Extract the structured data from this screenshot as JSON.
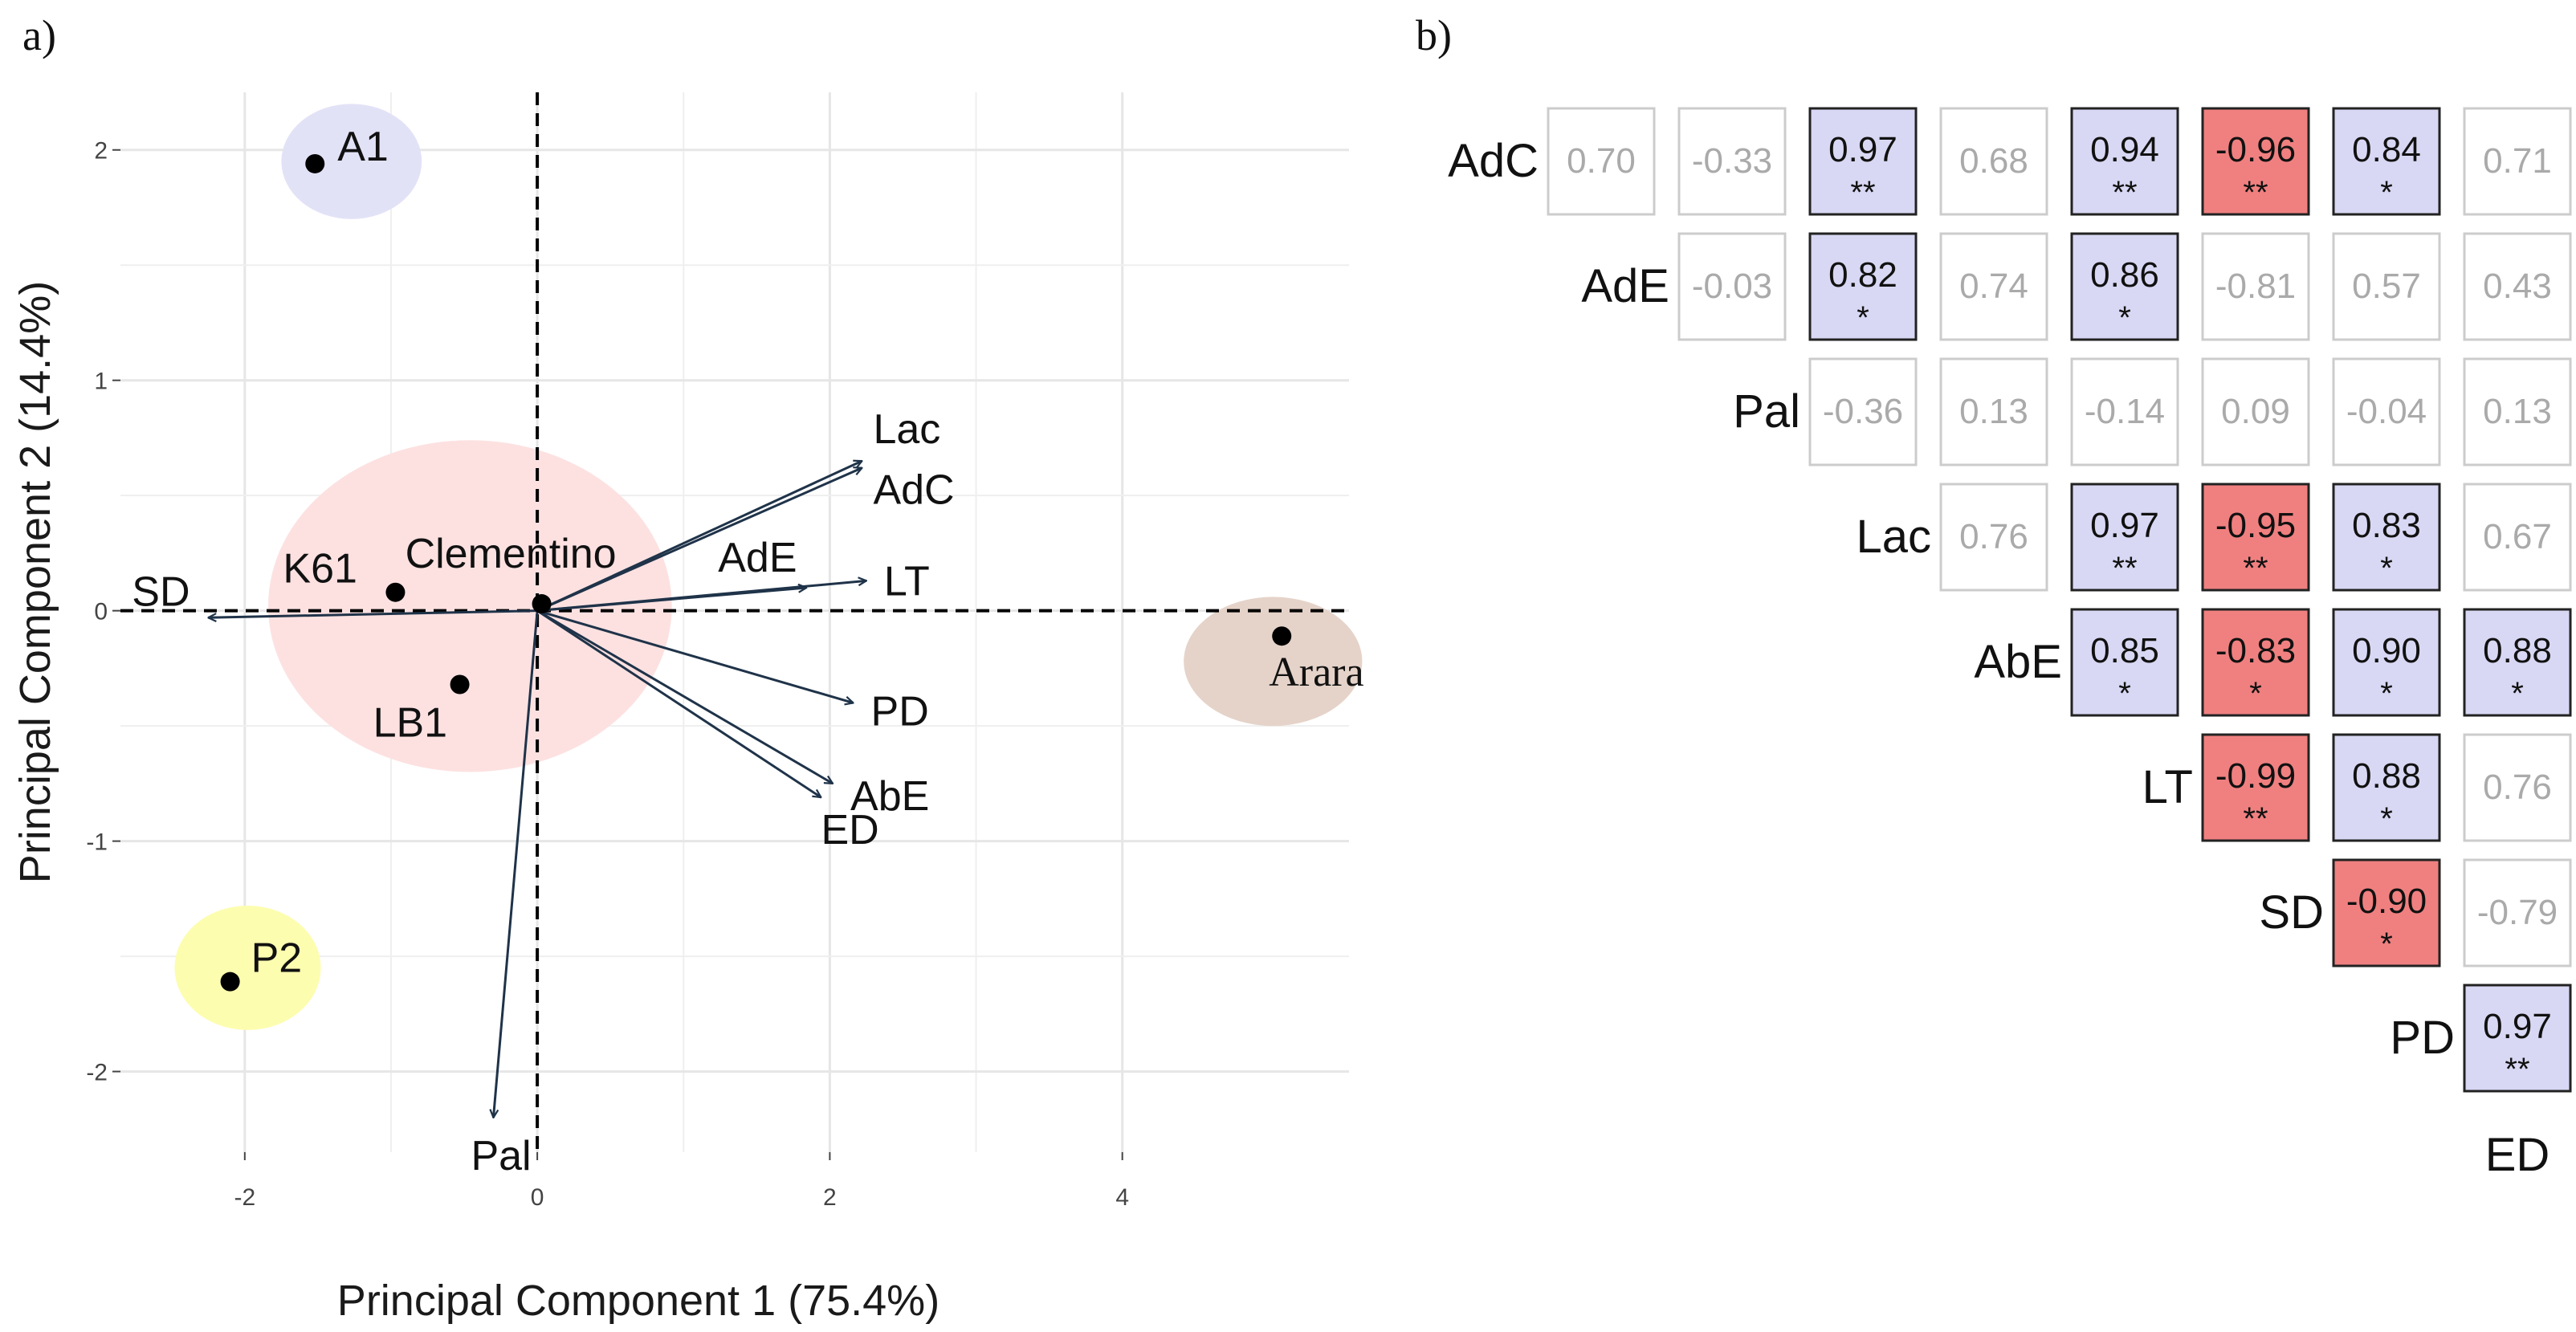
{
  "panel_labels": {
    "a": "a)",
    "b": "b)"
  },
  "chart_data": [
    {
      "type": "scatter",
      "subtype": "pca-biplot",
      "title": "",
      "xlabel": "Principal Component 1 (75.4%)",
      "ylabel": "Principal Component 2 (14.4%)",
      "xlim": [
        -2.85,
        5.55
      ],
      "ylim": [
        -2.35,
        2.25
      ],
      "grid": true,
      "x_ticks": [
        -2,
        0,
        2,
        4
      ],
      "x_tick_labels": [
        "-2",
        "0",
        "2",
        "4"
      ],
      "y_ticks": [
        -2,
        -1,
        0,
        1,
        2
      ],
      "y_tick_labels": [
        "-2",
        "-1",
        "0",
        "1",
        "2"
      ],
      "colors": {
        "vector": "#1f3349",
        "point": "#000000",
        "grid": "#e6e6e6",
        "zero_line": "#000000",
        "tick": "#444444"
      },
      "points": [
        {
          "name": "A1",
          "x": -1.52,
          "y": 1.94
        },
        {
          "name": "K61",
          "x": -0.97,
          "y": 0.08
        },
        {
          "name": "Clementino",
          "x": 0.03,
          "y": 0.03
        },
        {
          "name": "LB1",
          "x": -0.53,
          "y": -0.32
        },
        {
          "name": "P2",
          "x": -2.1,
          "y": -1.61
        },
        {
          "name": "Arara",
          "x": 5.09,
          "y": -0.11
        }
      ],
      "ellipses": [
        {
          "group": "A1",
          "cx": -1.27,
          "cy": 1.95,
          "rx": 0.48,
          "ry": 0.25,
          "color": "#e2e2f7"
        },
        {
          "group": "Clementino",
          "cx": -0.46,
          "cy": 0.02,
          "rx": 1.38,
          "ry": 0.72,
          "color": "#fde1e1"
        },
        {
          "group": "P2",
          "cx": -1.98,
          "cy": -1.55,
          "rx": 0.5,
          "ry": 0.27,
          "color": "#fdfdb0"
        },
        {
          "group": "Arara",
          "cx": 5.03,
          "cy": -0.22,
          "rx": 0.61,
          "ry": 0.28,
          "color": "#e5d3c9"
        }
      ],
      "vectors": [
        {
          "name": "Lac",
          "x": 2.22,
          "y": 0.65
        },
        {
          "name": "AdC",
          "x": 2.22,
          "y": 0.62
        },
        {
          "name": "AdE",
          "x": 1.84,
          "y": 0.1
        },
        {
          "name": "LT",
          "x": 2.25,
          "y": 0.13
        },
        {
          "name": "PD",
          "x": 2.16,
          "y": -0.4
        },
        {
          "name": "AbE",
          "x": 2.02,
          "y": -0.75
        },
        {
          "name": "ED",
          "x": 1.94,
          "y": -0.81
        },
        {
          "name": "Pal",
          "x": -0.3,
          "y": -2.2
        },
        {
          "name": "SD",
          "x": -2.25,
          "y": -0.03
        }
      ]
    },
    {
      "type": "heatmap",
      "subtype": "correlation-matrix-upper-triangle",
      "title": "",
      "row_labels": [
        "AdC",
        "AdE",
        "Pal",
        "Lac",
        "AbE",
        "LT",
        "SD",
        "PD"
      ],
      "col_labels": [
        "AdE",
        "Pal",
        "Lac",
        "AbE",
        "LT",
        "SD",
        "PD",
        "ED"
      ],
      "bottom_label": "ED",
      "values": [
        [
          "0.70",
          "-0.33",
          "0.97",
          "0.68",
          "0.94",
          "-0.96",
          "0.84",
          "0.71"
        ],
        [
          null,
          "-0.03",
          "0.82",
          "0.74",
          "0.86",
          "-0.81",
          "0.57",
          "0.43"
        ],
        [
          null,
          null,
          "-0.36",
          "0.13",
          "-0.14",
          "0.09",
          "-0.04",
          "0.13"
        ],
        [
          null,
          null,
          null,
          "0.76",
          "0.97",
          "-0.95",
          "0.83",
          "0.67"
        ],
        [
          null,
          null,
          null,
          null,
          "0.85",
          "-0.83",
          "0.90",
          "0.88"
        ],
        [
          null,
          null,
          null,
          null,
          null,
          "-0.99",
          "0.88",
          "0.76"
        ],
        [
          null,
          null,
          null,
          null,
          null,
          null,
          "-0.90",
          "-0.79"
        ],
        [
          null,
          null,
          null,
          null,
          null,
          null,
          null,
          "0.97"
        ]
      ],
      "significance": [
        [
          "",
          "",
          "**",
          "",
          "**",
          "**",
          "*",
          ""
        ],
        [
          null,
          "",
          "*",
          "",
          "*",
          "",
          "",
          ""
        ],
        [
          null,
          null,
          "",
          "",
          "",
          "",
          "",
          ""
        ],
        [
          null,
          null,
          null,
          "",
          "**",
          "**",
          "*",
          ""
        ],
        [
          null,
          null,
          null,
          null,
          "*",
          "*",
          "*",
          "*"
        ],
        [
          null,
          null,
          null,
          null,
          null,
          "**",
          "*",
          ""
        ],
        [
          null,
          null,
          null,
          null,
          null,
          null,
          "*",
          ""
        ],
        [
          null,
          null,
          null,
          null,
          null,
          null,
          null,
          "**"
        ]
      ],
      "colors": {
        "positive_significant": "#d8d8f4",
        "negative_significant": "#f08080",
        "significant_border": "#222222",
        "significant_text": "#111111",
        "nonsignificant_border": "#cccccc",
        "nonsignificant_text": "#aaaaaa",
        "nonsignificant_fill": "#ffffff"
      }
    }
  ]
}
